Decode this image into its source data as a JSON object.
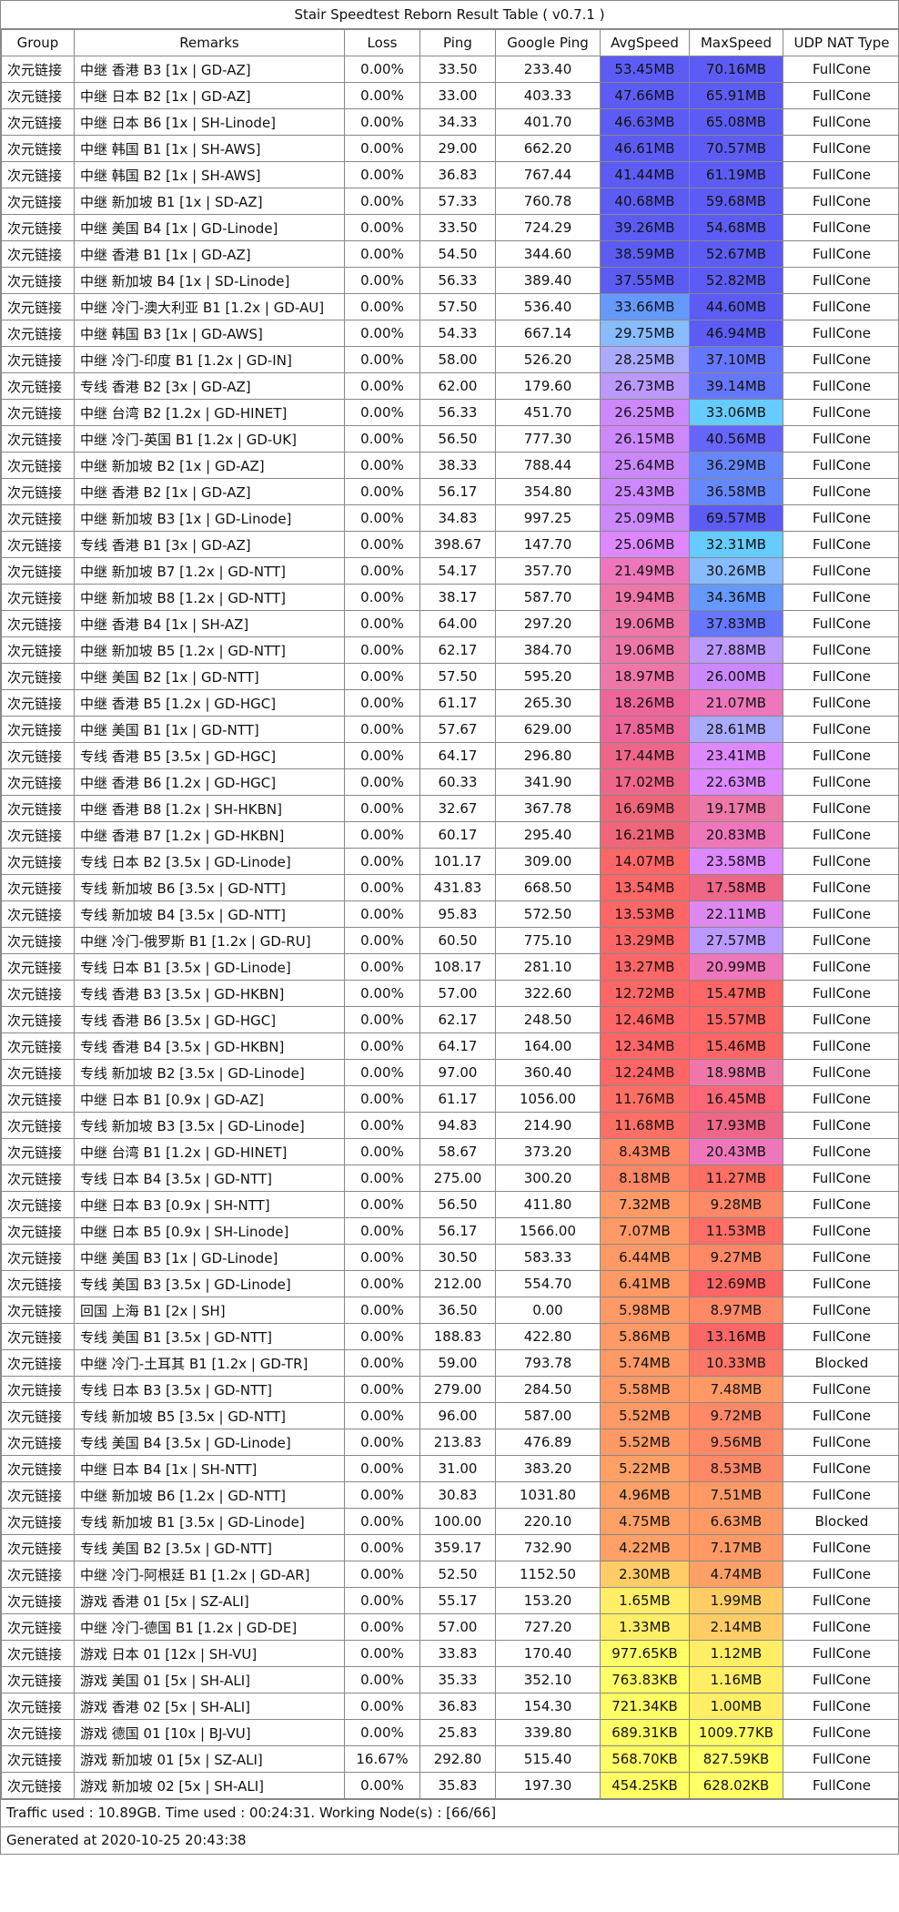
{
  "title": "Stair Speedtest Reborn Result Table ( v0.7.1 )",
  "headers": [
    "Group",
    "Remarks",
    "Loss",
    "Ping",
    "Google Ping",
    "AvgSpeed",
    "MaxSpeed",
    "UDP NAT Type"
  ],
  "rows": [
    {
      "group": "次元链接",
      "remarks": "中继 香港 B3 [1x | GD-AZ]",
      "loss": "0.00%",
      "ping": "33.50",
      "gping": "233.40",
      "avg": "53.45MB",
      "max": "70.16MB",
      "nat": "FullCone",
      "avg_color": "#5c5cf5",
      "max_color": "#5c5cf5"
    },
    {
      "group": "次元链接",
      "remarks": "中继 日本 B2 [1x | GD-AZ]",
      "loss": "0.00%",
      "ping": "33.00",
      "gping": "403.33",
      "avg": "47.66MB",
      "max": "65.91MB",
      "nat": "FullCone",
      "avg_color": "#5c5cf5",
      "max_color": "#5c5cf5"
    },
    {
      "group": "次元链接",
      "remarks": "中继 日本 B6 [1x | SH-Linode]",
      "loss": "0.00%",
      "ping": "34.33",
      "gping": "401.70",
      "avg": "46.63MB",
      "max": "65.08MB",
      "nat": "FullCone",
      "avg_color": "#5c5cf5",
      "max_color": "#5c5cf5"
    },
    {
      "group": "次元链接",
      "remarks": "中继 韩国 B1 [1x | SH-AWS]",
      "loss": "0.00%",
      "ping": "29.00",
      "gping": "662.20",
      "avg": "46.61MB",
      "max": "70.57MB",
      "nat": "FullCone",
      "avg_color": "#5c5cf5",
      "max_color": "#5c5cf5"
    },
    {
      "group": "次元链接",
      "remarks": "中继 韩国 B2 [1x | SH-AWS]",
      "loss": "0.00%",
      "ping": "36.83",
      "gping": "767.44",
      "avg": "41.44MB",
      "max": "61.19MB",
      "nat": "FullCone",
      "avg_color": "#5c5cf5",
      "max_color": "#5c5cf5"
    },
    {
      "group": "次元链接",
      "remarks": "中继 新加坡 B1 [1x | SD-AZ]",
      "loss": "0.00%",
      "ping": "57.33",
      "gping": "760.78",
      "avg": "40.68MB",
      "max": "59.68MB",
      "nat": "FullCone",
      "avg_color": "#5c5cf5",
      "max_color": "#5c5cf5"
    },
    {
      "group": "次元链接",
      "remarks": "中继 美国 B4 [1x | GD-Linode]",
      "loss": "0.00%",
      "ping": "33.50",
      "gping": "724.29",
      "avg": "39.26MB",
      "max": "54.68MB",
      "nat": "FullCone",
      "avg_color": "#5c5cf5",
      "max_color": "#5c5cf5"
    },
    {
      "group": "次元链接",
      "remarks": "中继 香港 B1 [1x | GD-AZ]",
      "loss": "0.00%",
      "ping": "54.50",
      "gping": "344.60",
      "avg": "38.59MB",
      "max": "52.67MB",
      "nat": "FullCone",
      "avg_color": "#5c5cf5",
      "max_color": "#5c5cf5"
    },
    {
      "group": "次元链接",
      "remarks": "中继 新加坡 B4 [1x | SD-Linode]",
      "loss": "0.00%",
      "ping": "56.33",
      "gping": "389.40",
      "avg": "37.55MB",
      "max": "52.82MB",
      "nat": "FullCone",
      "avg_color": "#5c5cf5",
      "max_color": "#5c5cf5"
    },
    {
      "group": "次元链接",
      "remarks": "中继 冷门-澳大利亚 B1 [1.2x | GD-AU]",
      "loss": "0.00%",
      "ping": "57.50",
      "gping": "536.40",
      "avg": "33.66MB",
      "max": "44.60MB",
      "nat": "FullCone",
      "avg_color": "#6699ff",
      "max_color": "#5c5cf5"
    },
    {
      "group": "次元链接",
      "remarks": "中继 韩国 B3 [1x | GD-AWS]",
      "loss": "0.00%",
      "ping": "54.33",
      "gping": "667.14",
      "avg": "29.75MB",
      "max": "46.94MB",
      "nat": "FullCone",
      "avg_color": "#88bbff",
      "max_color": "#5c5cf5"
    },
    {
      "group": "次元链接",
      "remarks": "中继 冷门-印度 B1 [1.2x | GD-IN]",
      "loss": "0.00%",
      "ping": "58.00",
      "gping": "526.20",
      "avg": "28.25MB",
      "max": "37.10MB",
      "nat": "FullCone",
      "avg_color": "#aaaaff",
      "max_color": "#6677ff"
    },
    {
      "group": "次元链接",
      "remarks": "专线 香港 B2 [3x | GD-AZ]",
      "loss": "0.00%",
      "ping": "62.00",
      "gping": "179.60",
      "avg": "26.73MB",
      "max": "39.14MB",
      "nat": "FullCone",
      "avg_color": "#bb99ff",
      "max_color": "#6677ff"
    },
    {
      "group": "次元链接",
      "remarks": "中继 台湾 B2 [1.2x | GD-HINET]",
      "loss": "0.00%",
      "ping": "56.33",
      "gping": "451.70",
      "avg": "26.25MB",
      "max": "33.06MB",
      "nat": "FullCone",
      "avg_color": "#cc88ff",
      "max_color": "#66ccff"
    },
    {
      "group": "次元链接",
      "remarks": "中继 冷门-英国 B1 [1.2x | GD-UK]",
      "loss": "0.00%",
      "ping": "56.50",
      "gping": "777.30",
      "avg": "26.15MB",
      "max": "40.56MB",
      "nat": "FullCone",
      "avg_color": "#cc88ff",
      "max_color": "#6666ff"
    },
    {
      "group": "次元链接",
      "remarks": "中继 新加坡 B2 [1x | GD-AZ]",
      "loss": "0.00%",
      "ping": "38.33",
      "gping": "788.44",
      "avg": "25.64MB",
      "max": "36.29MB",
      "nat": "FullCone",
      "avg_color": "#cc88ff",
      "max_color": "#6688ff"
    },
    {
      "group": "次元链接",
      "remarks": "中继 香港 B2 [1x | GD-AZ]",
      "loss": "0.00%",
      "ping": "56.17",
      "gping": "354.80",
      "avg": "25.43MB",
      "max": "36.58MB",
      "nat": "FullCone",
      "avg_color": "#cc88ff",
      "max_color": "#6688ff"
    },
    {
      "group": "次元链接",
      "remarks": "中继 新加坡 B3 [1x | GD-Linode]",
      "loss": "0.00%",
      "ping": "34.83",
      "gping": "997.25",
      "avg": "25.09MB",
      "max": "69.57MB",
      "nat": "FullCone",
      "avg_color": "#cc88ff",
      "max_color": "#5c5cf5"
    },
    {
      "group": "次元链接",
      "remarks": "专线 香港 B1 [3x | GD-AZ]",
      "loss": "0.00%",
      "ping": "398.67",
      "gping": "147.70",
      "avg": "25.06MB",
      "max": "32.31MB",
      "nat": "FullCone",
      "avg_color": "#dd88ff",
      "max_color": "#66ccff"
    },
    {
      "group": "次元链接",
      "remarks": "中继 新加坡 B7 [1.2x | GD-NTT]",
      "loss": "0.00%",
      "ping": "54.17",
      "gping": "357.70",
      "avg": "21.49MB",
      "max": "30.26MB",
      "nat": "FullCone",
      "avg_color": "#ee77bb",
      "max_color": "#88bbff"
    },
    {
      "group": "次元链接",
      "remarks": "中继 新加坡 B8 [1.2x | GD-NTT]",
      "loss": "0.00%",
      "ping": "38.17",
      "gping": "587.70",
      "avg": "19.94MB",
      "max": "34.36MB",
      "nat": "FullCone",
      "avg_color": "#ee77aa",
      "max_color": "#6699ff"
    },
    {
      "group": "次元链接",
      "remarks": "中继 香港 B4 [1x | SH-AZ]",
      "loss": "0.00%",
      "ping": "64.00",
      "gping": "297.20",
      "avg": "19.06MB",
      "max": "37.83MB",
      "nat": "FullCone",
      "avg_color": "#ee77aa",
      "max_color": "#6677ff"
    },
    {
      "group": "次元链接",
      "remarks": "中继 新加坡 B5 [1.2x | GD-NTT]",
      "loss": "0.00%",
      "ping": "62.17",
      "gping": "384.70",
      "avg": "19.06MB",
      "max": "27.88MB",
      "nat": "FullCone",
      "avg_color": "#ee77aa",
      "max_color": "#bb99ff"
    },
    {
      "group": "次元链接",
      "remarks": "中继 美国 B2 [1x | GD-NTT]",
      "loss": "0.00%",
      "ping": "57.50",
      "gping": "595.20",
      "avg": "18.97MB",
      "max": "26.00MB",
      "nat": "FullCone",
      "avg_color": "#ee77aa",
      "max_color": "#cc88ff"
    },
    {
      "group": "次元链接",
      "remarks": "中继 香港 B5 [1.2x | GD-HGC]",
      "loss": "0.00%",
      "ping": "61.17",
      "gping": "265.30",
      "avg": "18.26MB",
      "max": "21.07MB",
      "nat": "FullCone",
      "avg_color": "#ee6699",
      "max_color": "#ee77bb"
    },
    {
      "group": "次元链接",
      "remarks": "中继 美国 B1 [1x | GD-NTT]",
      "loss": "0.00%",
      "ping": "57.67",
      "gping": "629.00",
      "avg": "17.85MB",
      "max": "28.61MB",
      "nat": "FullCone",
      "avg_color": "#ee6699",
      "max_color": "#aaaaff"
    },
    {
      "group": "次元链接",
      "remarks": "专线 香港 B5 [3.5x | GD-HGC]",
      "loss": "0.00%",
      "ping": "64.17",
      "gping": "296.80",
      "avg": "17.44MB",
      "max": "23.41MB",
      "nat": "FullCone",
      "avg_color": "#ee6688",
      "max_color": "#dd88ff"
    },
    {
      "group": "次元链接",
      "remarks": "中继 香港 B6 [1.2x | GD-HGC]",
      "loss": "0.00%",
      "ping": "60.33",
      "gping": "341.90",
      "avg": "17.02MB",
      "max": "22.63MB",
      "nat": "FullCone",
      "avg_color": "#ee6688",
      "max_color": "#dd88ff"
    },
    {
      "group": "次元链接",
      "remarks": "中继 香港 B8 [1.2x | SH-HKBN]",
      "loss": "0.00%",
      "ping": "32.67",
      "gping": "367.78",
      "avg": "16.69MB",
      "max": "19.17MB",
      "nat": "FullCone",
      "avg_color": "#ee6677",
      "max_color": "#ee77aa"
    },
    {
      "group": "次元链接",
      "remarks": "中继 香港 B7 [1.2x | GD-HKBN]",
      "loss": "0.00%",
      "ping": "60.17",
      "gping": "295.40",
      "avg": "16.21MB",
      "max": "20.83MB",
      "nat": "FullCone",
      "avg_color": "#ee6677",
      "max_color": "#ee77bb"
    },
    {
      "group": "次元链接",
      "remarks": "专线 日本 B2 [3.5x | GD-Linode]",
      "loss": "0.00%",
      "ping": "101.17",
      "gping": "309.00",
      "avg": "14.07MB",
      "max": "23.58MB",
      "nat": "FullCone",
      "avg_color": "#ff6666",
      "max_color": "#dd88ff"
    },
    {
      "group": "次元链接",
      "remarks": "专线 新加坡 B6 [3.5x | GD-NTT]",
      "loss": "0.00%",
      "ping": "431.83",
      "gping": "668.50",
      "avg": "13.54MB",
      "max": "17.58MB",
      "nat": "FullCone",
      "avg_color": "#ff6666",
      "max_color": "#ee6688"
    },
    {
      "group": "次元链接",
      "remarks": "专线 新加坡 B4 [3.5x | GD-NTT]",
      "loss": "0.00%",
      "ping": "95.83",
      "gping": "572.50",
      "avg": "13.53MB",
      "max": "22.11MB",
      "nat": "FullCone",
      "avg_color": "#ff6666",
      "max_color": "#dd88ee"
    },
    {
      "group": "次元链接",
      "remarks": "中继 冷门-俄罗斯 B1 [1.2x | GD-RU]",
      "loss": "0.00%",
      "ping": "60.50",
      "gping": "775.10",
      "avg": "13.29MB",
      "max": "27.57MB",
      "nat": "FullCone",
      "avg_color": "#ff6666",
      "max_color": "#bb99ff"
    },
    {
      "group": "次元链接",
      "remarks": "专线 日本 B1 [3.5x | GD-Linode]",
      "loss": "0.00%",
      "ping": "108.17",
      "gping": "281.10",
      "avg": "13.27MB",
      "max": "20.99MB",
      "nat": "FullCone",
      "avg_color": "#ff6666",
      "max_color": "#ee77bb"
    },
    {
      "group": "次元链接",
      "remarks": "专线 香港 B3 [3.5x | GD-HKBN]",
      "loss": "0.00%",
      "ping": "57.00",
      "gping": "322.60",
      "avg": "12.72MB",
      "max": "15.47MB",
      "nat": "FullCone",
      "avg_color": "#ff6666",
      "max_color": "#ff6666"
    },
    {
      "group": "次元链接",
      "remarks": "专线 香港 B6 [3.5x | GD-HGC]",
      "loss": "0.00%",
      "ping": "62.17",
      "gping": "248.50",
      "avg": "12.46MB",
      "max": "15.57MB",
      "nat": "FullCone",
      "avg_color": "#ff6666",
      "max_color": "#ff6666"
    },
    {
      "group": "次元链接",
      "remarks": "专线 香港 B4 [3.5x | GD-HKBN]",
      "loss": "0.00%",
      "ping": "64.17",
      "gping": "164.00",
      "avg": "12.34MB",
      "max": "15.46MB",
      "nat": "FullCone",
      "avg_color": "#ff6666",
      "max_color": "#ff6666"
    },
    {
      "group": "次元链接",
      "remarks": "专线 新加坡 B2 [3.5x | GD-Linode]",
      "loss": "0.00%",
      "ping": "97.00",
      "gping": "360.40",
      "avg": "12.24MB",
      "max": "18.98MB",
      "nat": "FullCone",
      "avg_color": "#ff6666",
      "max_color": "#ee77aa"
    },
    {
      "group": "次元链接",
      "remarks": "中继 日本 B1 [0.9x | GD-AZ]",
      "loss": "0.00%",
      "ping": "61.17",
      "gping": "1056.00",
      "avg": "11.76MB",
      "max": "16.45MB",
      "nat": "FullCone",
      "avg_color": "#ff6f66",
      "max_color": "#ff6677"
    },
    {
      "group": "次元链接",
      "remarks": "专线 新加坡 B3 [3.5x | GD-Linode]",
      "loss": "0.00%",
      "ping": "94.83",
      "gping": "214.90",
      "avg": "11.68MB",
      "max": "17.93MB",
      "nat": "FullCone",
      "avg_color": "#ff6f66",
      "max_color": "#ee6688"
    },
    {
      "group": "次元链接",
      "remarks": "中继 台湾 B1 [1.2x | GD-HINET]",
      "loss": "0.00%",
      "ping": "58.67",
      "gping": "373.20",
      "avg": "8.43MB",
      "max": "20.43MB",
      "nat": "FullCone",
      "avg_color": "#ff8866",
      "max_color": "#ee77bb"
    },
    {
      "group": "次元链接",
      "remarks": "专线 日本 B4 [3.5x | GD-NTT]",
      "loss": "0.00%",
      "ping": "275.00",
      "gping": "300.20",
      "avg": "8.18MB",
      "max": "11.27MB",
      "nat": "FullCone",
      "avg_color": "#ff8866",
      "max_color": "#ff6f66"
    },
    {
      "group": "次元链接",
      "remarks": "中继 日本 B3 [0.9x | SH-NTT]",
      "loss": "0.00%",
      "ping": "56.50",
      "gping": "411.80",
      "avg": "7.32MB",
      "max": "9.28MB",
      "nat": "FullCone",
      "avg_color": "#ff9966",
      "max_color": "#ff8866"
    },
    {
      "group": "次元链接",
      "remarks": "中继 日本 B5 [0.9x | SH-Linode]",
      "loss": "0.00%",
      "ping": "56.17",
      "gping": "1566.00",
      "avg": "7.07MB",
      "max": "11.53MB",
      "nat": "FullCone",
      "avg_color": "#ff9966",
      "max_color": "#ff6f66"
    },
    {
      "group": "次元链接",
      "remarks": "中继 美国 B3 [1x | GD-Linode]",
      "loss": "0.00%",
      "ping": "30.50",
      "gping": "583.33",
      "avg": "6.44MB",
      "max": "9.27MB",
      "nat": "FullCone",
      "avg_color": "#ff9966",
      "max_color": "#ff8866"
    },
    {
      "group": "次元链接",
      "remarks": "专线 美国 B3 [3.5x | GD-Linode]",
      "loss": "0.00%",
      "ping": "212.00",
      "gping": "554.70",
      "avg": "6.41MB",
      "max": "12.69MB",
      "nat": "FullCone",
      "avg_color": "#ff9966",
      "max_color": "#ff6666"
    },
    {
      "group": "次元链接",
      "remarks": "回国 上海 B1 [2x | SH]",
      "loss": "0.00%",
      "ping": "36.50",
      "gping": "0.00",
      "avg": "5.98MB",
      "max": "8.97MB",
      "nat": "FullCone",
      "avg_color": "#ff9966",
      "max_color": "#ff8866"
    },
    {
      "group": "次元链接",
      "remarks": "专线 美国 B1 [3.5x | GD-NTT]",
      "loss": "0.00%",
      "ping": "188.83",
      "gping": "422.80",
      "avg": "5.86MB",
      "max": "13.16MB",
      "nat": "FullCone",
      "avg_color": "#ff9966",
      "max_color": "#ff6666"
    },
    {
      "group": "次元链接",
      "remarks": "中继 冷门-土耳其 B1 [1.2x | GD-TR]",
      "loss": "0.00%",
      "ping": "59.00",
      "gping": "793.78",
      "avg": "5.74MB",
      "max": "10.33MB",
      "nat": "Blocked",
      "avg_color": "#ff9966",
      "max_color": "#ff7766"
    },
    {
      "group": "次元链接",
      "remarks": "专线 日本 B3 [3.5x | GD-NTT]",
      "loss": "0.00%",
      "ping": "279.00",
      "gping": "284.50",
      "avg": "5.58MB",
      "max": "7.48MB",
      "nat": "FullCone",
      "avg_color": "#ff9966",
      "max_color": "#ff9966"
    },
    {
      "group": "次元链接",
      "remarks": "专线 新加坡 B5 [3.5x | GD-NTT]",
      "loss": "0.00%",
      "ping": "96.00",
      "gping": "587.00",
      "avg": "5.52MB",
      "max": "9.72MB",
      "nat": "FullCone",
      "avg_color": "#ff9966",
      "max_color": "#ff8866"
    },
    {
      "group": "次元链接",
      "remarks": "专线 美国 B4 [3.5x | GD-Linode]",
      "loss": "0.00%",
      "ping": "213.83",
      "gping": "476.89",
      "avg": "5.52MB",
      "max": "9.56MB",
      "nat": "FullCone",
      "avg_color": "#ff9966",
      "max_color": "#ff8866"
    },
    {
      "group": "次元链接",
      "remarks": "中继 日本 B4 [1x | SH-NTT]",
      "loss": "0.00%",
      "ping": "31.00",
      "gping": "383.20",
      "avg": "5.22MB",
      "max": "8.53MB",
      "nat": "FullCone",
      "avg_color": "#ffa066",
      "max_color": "#ff8866"
    },
    {
      "group": "次元链接",
      "remarks": "中继 新加坡 B6 [1.2x | GD-NTT]",
      "loss": "0.00%",
      "ping": "30.83",
      "gping": "1031.80",
      "avg": "4.96MB",
      "max": "7.51MB",
      "nat": "FullCone",
      "avg_color": "#ffa066",
      "max_color": "#ff9966"
    },
    {
      "group": "次元链接",
      "remarks": "专线 新加坡 B1 [3.5x | GD-Linode]",
      "loss": "0.00%",
      "ping": "100.00",
      "gping": "220.10",
      "avg": "4.75MB",
      "max": "6.63MB",
      "nat": "Blocked",
      "avg_color": "#ffa066",
      "max_color": "#ff9966"
    },
    {
      "group": "次元链接",
      "remarks": "专线 美国 B2 [3.5x | GD-NTT]",
      "loss": "0.00%",
      "ping": "359.17",
      "gping": "732.90",
      "avg": "4.22MB",
      "max": "7.17MB",
      "nat": "FullCone",
      "avg_color": "#ffa066",
      "max_color": "#ff9966"
    },
    {
      "group": "次元链接",
      "remarks": "中继 冷门-阿根廷 B1 [1.2x | GD-AR]",
      "loss": "0.00%",
      "ping": "52.50",
      "gping": "1152.50",
      "avg": "2.30MB",
      "max": "4.74MB",
      "nat": "FullCone",
      "avg_color": "#ffcc66",
      "max_color": "#ffa066"
    },
    {
      "group": "次元链接",
      "remarks": "游戏 香港 01 [5x | SZ-ALI]",
      "loss": "0.00%",
      "ping": "55.17",
      "gping": "153.20",
      "avg": "1.65MB",
      "max": "1.99MB",
      "nat": "FullCone",
      "avg_color": "#ffee66",
      "max_color": "#ffcc66"
    },
    {
      "group": "次元链接",
      "remarks": "中继 冷门-德国 B1 [1.2x | GD-DE]",
      "loss": "0.00%",
      "ping": "57.00",
      "gping": "727.20",
      "avg": "1.33MB",
      "max": "2.14MB",
      "nat": "FullCone",
      "avg_color": "#ffee66",
      "max_color": "#ffcc66"
    },
    {
      "group": "次元链接",
      "remarks": "游戏 日本 01 [12x | SH-VU]",
      "loss": "0.00%",
      "ping": "33.83",
      "gping": "170.40",
      "avg": "977.65KB",
      "max": "1.12MB",
      "nat": "FullCone",
      "avg_color": "#ffff66",
      "max_color": "#ffee66"
    },
    {
      "group": "次元链接",
      "remarks": "游戏 美国 01 [5x | SH-ALI]",
      "loss": "0.00%",
      "ping": "35.33",
      "gping": "352.10",
      "avg": "763.83KB",
      "max": "1.16MB",
      "nat": "FullCone",
      "avg_color": "#ffff66",
      "max_color": "#ffee66"
    },
    {
      "group": "次元链接",
      "remarks": "游戏 香港 02 [5x | SH-ALI]",
      "loss": "0.00%",
      "ping": "36.83",
      "gping": "154.30",
      "avg": "721.34KB",
      "max": "1.00MB",
      "nat": "FullCone",
      "avg_color": "#ffff66",
      "max_color": "#ffee66"
    },
    {
      "group": "次元链接",
      "remarks": "游戏 德国 01 [10x | BJ-VU]",
      "loss": "0.00%",
      "ping": "25.83",
      "gping": "339.80",
      "avg": "689.31KB",
      "max": "1009.77KB",
      "nat": "FullCone",
      "avg_color": "#ffff66",
      "max_color": "#ffff66"
    },
    {
      "group": "次元链接",
      "remarks": "游戏 新加坡 01 [5x | SZ-ALI]",
      "loss": "16.67%",
      "ping": "292.80",
      "gping": "515.40",
      "avg": "568.70KB",
      "max": "827.59KB",
      "nat": "FullCone",
      "avg_color": "#ffff66",
      "max_color": "#ffff66"
    },
    {
      "group": "次元链接",
      "remarks": "游戏 新加坡 02 [5x | SH-ALI]",
      "loss": "0.00%",
      "ping": "35.83",
      "gping": "197.30",
      "avg": "454.25KB",
      "max": "628.02KB",
      "nat": "FullCone",
      "avg_color": "#ffff66",
      "max_color": "#ffff66"
    }
  ],
  "footer": {
    "traffic": "Traffic used : 10.89GB. Time used : 00:24:31. Working Node(s) : [66/66]",
    "generated": "Generated at 2020-10-25 20:43:38"
  }
}
